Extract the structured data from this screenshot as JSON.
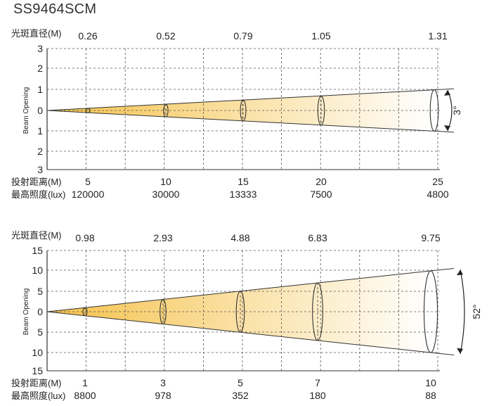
{
  "title": "SS9464SCM",
  "diagrams": [
    {
      "spot_label": "光斑直径(M)",
      "spot_values": [
        "0.26",
        "0.52",
        "0.79",
        "1.05",
        "1.31"
      ],
      "y_ticks": [
        "3",
        "2",
        "1",
        "0",
        "1",
        "2",
        "3"
      ],
      "y_axis_label": "Beam Opening",
      "distance_label": "投射距离(M)",
      "distance_values": [
        "5",
        "10",
        "15",
        "20",
        "25"
      ],
      "lux_label": "最高照度(lux)",
      "lux_values": [
        "120000",
        "30000",
        "13333",
        "7500",
        "4800"
      ],
      "angle_label": "3°",
      "beam_half_spread": 1.0
    },
    {
      "spot_label": "光斑直径(M)",
      "spot_values": [
        "0.98",
        "2.93",
        "4.88",
        "6.83",
        "9.75"
      ],
      "y_ticks": [
        "15",
        "10",
        "5",
        "0",
        "5",
        "10",
        "15"
      ],
      "y_axis_label": "Beam Opening",
      "distance_label": "投射距离(M)",
      "distance_values": [
        "1",
        "3",
        "5",
        "7",
        "10"
      ],
      "lux_label": "最高照度(lux)",
      "lux_values": [
        "8800",
        "978",
        "352",
        "180",
        "88"
      ],
      "angle_label": "52°",
      "beam_half_spread": 10.0
    }
  ],
  "colors": {
    "beam_start": "#f5c24a",
    "beam_end": "#ffffff",
    "grid": "#555555",
    "axis": "#333333"
  }
}
